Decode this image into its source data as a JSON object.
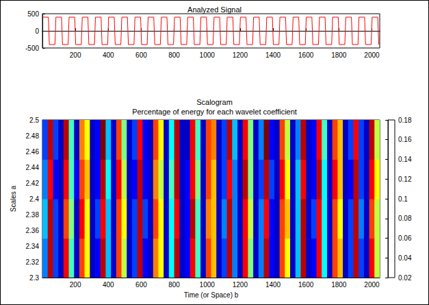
{
  "chart_data": [
    {
      "type": "line",
      "title": "Analyzed Signal",
      "color": "#ff0000",
      "grid": false,
      "xlim": [
        0,
        2048
      ],
      "xticks": [
        200,
        400,
        600,
        800,
        1000,
        1200,
        1400,
        1600,
        1800,
        2000
      ],
      "ylim": [
        -500,
        500
      ],
      "yticks": [
        -500,
        0,
        500
      ],
      "x": [
        2,
        36,
        42,
        76,
        82,
        116,
        122,
        156,
        162,
        196,
        202,
        236,
        242,
        276,
        282,
        316,
        322,
        356,
        362,
        396,
        402,
        436,
        442,
        476,
        482,
        516,
        522,
        556,
        562,
        596,
        602,
        636,
        642,
        676,
        682,
        716,
        722,
        756,
        762,
        796,
        802,
        836,
        842,
        876,
        882,
        916,
        922,
        956,
        962,
        996,
        1002,
        1036,
        1042,
        1076,
        1082,
        1116,
        1122,
        1156,
        1162,
        1196,
        1202,
        1236,
        1242,
        1276,
        1282,
        1316,
        1322,
        1356,
        1362,
        1396,
        1402,
        1436,
        1442,
        1476,
        1482,
        1516,
        1522,
        1556,
        1562,
        1596,
        1602,
        1636,
        1642,
        1676,
        1682,
        1716,
        1722,
        1756,
        1762,
        1796,
        1802,
        1836,
        1842,
        1876,
        1882,
        1916,
        1922,
        1956,
        1962,
        1996,
        2002,
        2036,
        2042
      ],
      "values": [
        400,
        400,
        -400,
        -400,
        400,
        400,
        -400,
        -400,
        400,
        400,
        -400,
        -400,
        400,
        400,
        -400,
        -400,
        400,
        400,
        -400,
        -400,
        400,
        400,
        -400,
        -400,
        400,
        400,
        -400,
        -400,
        400,
        400,
        -400,
        -400,
        400,
        400,
        -400,
        -400,
        400,
        400,
        -400,
        -400,
        400,
        400,
        -400,
        -400,
        400,
        400,
        -400,
        -400,
        400,
        400,
        -400,
        -400,
        400,
        400,
        -400,
        -400,
        400,
        400,
        -400,
        -400,
        400,
        400,
        -400,
        -400,
        400,
        400,
        -400,
        -400,
        400,
        400,
        -400,
        -400,
        400,
        400,
        -400,
        -400,
        400,
        400,
        -400,
        -400,
        400,
        400,
        -400,
        -400,
        400,
        400,
        -400,
        -400,
        400,
        400,
        -400,
        -400,
        400,
        400,
        -400,
        -400,
        400,
        400,
        -400,
        -400,
        400,
        400,
        -400
      ]
    },
    {
      "type": "heatmap",
      "title": "Scalogram",
      "subtitle": "Percentage of energy for each wavelet coefficient",
      "x_label": "Time (or Space) b",
      "y_label": "Scales a",
      "grid": false,
      "xlim": [
        0,
        2048
      ],
      "xticks": [
        200,
        400,
        600,
        800,
        1000,
        1200,
        1400,
        1600,
        1800,
        2000
      ],
      "ylim": [
        2.3,
        2.5
      ],
      "yticks": [
        2.3,
        2.32,
        2.34,
        2.36,
        2.38,
        2.4,
        2.42,
        2.44,
        2.46,
        2.48,
        2.5
      ],
      "colorbar_lim": [
        0.02,
        0.18
      ],
      "colorbar_ticks": [
        0.02,
        0.04,
        0.06,
        0.08,
        0.1,
        0.12,
        0.14,
        0.16,
        0.18
      ],
      "x_bins": [
        0,
        32,
        64,
        96,
        128,
        160,
        192,
        224,
        256,
        288,
        320,
        352,
        384,
        416,
        448,
        480,
        512,
        544,
        576,
        608,
        640,
        672,
        704,
        736,
        768,
        800,
        832,
        864,
        896,
        928,
        960,
        992,
        1024,
        1056,
        1088,
        1120,
        1152,
        1184,
        1216,
        1248,
        1280,
        1312,
        1344,
        1376,
        1408,
        1440,
        1472,
        1504,
        1536,
        1568,
        1600,
        1632,
        1664,
        1696,
        1728,
        1760,
        1792,
        1824,
        1856,
        1888,
        1920,
        1952,
        1984,
        2016,
        2048
      ],
      "y_bins": [
        2.3,
        2.35,
        2.4,
        2.45,
        2.5
      ],
      "values": [
        [
          0.06,
          0.17,
          0.05,
          0.03,
          0.16,
          0.09,
          0.03,
          0.15,
          0.12,
          0.03,
          0.04,
          0.17,
          0.07,
          0.03,
          0.15,
          0.11,
          0.03,
          0.05,
          0.17,
          0.04,
          0.03,
          0.14,
          0.12,
          0.03,
          0.08,
          0.17,
          0.03,
          0.04,
          0.16,
          0.09,
          0.03,
          0.15,
          0.13,
          0.03,
          0.05,
          0.17,
          0.06,
          0.03,
          0.16,
          0.1,
          0.03,
          0.06,
          0.17,
          0.04,
          0.03,
          0.15,
          0.12,
          0.03,
          0.07,
          0.17,
          0.03,
          0.04,
          0.16,
          0.08,
          0.03,
          0.15,
          0.13,
          0.03,
          0.05,
          0.17,
          0.05,
          0.03,
          0.16,
          0.11
        ],
        [
          0.07,
          0.17,
          0.05,
          0.03,
          0.15,
          0.1,
          0.03,
          0.16,
          0.12,
          0.03,
          0.05,
          0.16,
          0.07,
          0.03,
          0.15,
          0.12,
          0.03,
          0.05,
          0.17,
          0.05,
          0.03,
          0.15,
          0.12,
          0.03,
          0.08,
          0.16,
          0.03,
          0.04,
          0.17,
          0.09,
          0.03,
          0.14,
          0.13,
          0.03,
          0.06,
          0.17,
          0.06,
          0.03,
          0.16,
          0.11,
          0.03,
          0.06,
          0.16,
          0.04,
          0.03,
          0.15,
          0.13,
          0.03,
          0.07,
          0.17,
          0.03,
          0.05,
          0.16,
          0.08,
          0.03,
          0.15,
          0.12,
          0.03,
          0.05,
          0.17,
          0.06,
          0.03,
          0.15,
          0.11
        ],
        [
          0.06,
          0.16,
          0.04,
          0.03,
          0.16,
          0.09,
          0.04,
          0.15,
          0.13,
          0.03,
          0.04,
          0.17,
          0.08,
          0.03,
          0.16,
          0.11,
          0.03,
          0.04,
          0.17,
          0.04,
          0.03,
          0.14,
          0.11,
          0.03,
          0.09,
          0.17,
          0.03,
          0.04,
          0.16,
          0.1,
          0.03,
          0.15,
          0.13,
          0.03,
          0.05,
          0.16,
          0.06,
          0.03,
          0.17,
          0.1,
          0.03,
          0.05,
          0.17,
          0.05,
          0.03,
          0.16,
          0.12,
          0.03,
          0.07,
          0.16,
          0.03,
          0.04,
          0.17,
          0.08,
          0.03,
          0.16,
          0.13,
          0.03,
          0.04,
          0.17,
          0.05,
          0.03,
          0.16,
          0.12
        ],
        [
          0.05,
          0.17,
          0.05,
          0.03,
          0.17,
          0.09,
          0.03,
          0.14,
          0.12,
          0.03,
          0.04,
          0.18,
          0.07,
          0.03,
          0.15,
          0.1,
          0.03,
          0.05,
          0.16,
          0.04,
          0.03,
          0.15,
          0.12,
          0.03,
          0.08,
          0.17,
          0.03,
          0.03,
          0.16,
          0.09,
          0.03,
          0.15,
          0.14,
          0.03,
          0.05,
          0.17,
          0.07,
          0.03,
          0.16,
          0.1,
          0.03,
          0.06,
          0.18,
          0.04,
          0.03,
          0.15,
          0.11,
          0.03,
          0.06,
          0.17,
          0.03,
          0.04,
          0.16,
          0.09,
          0.03,
          0.15,
          0.13,
          0.03,
          0.05,
          0.16,
          0.05,
          0.03,
          0.17,
          0.11
        ]
      ]
    }
  ]
}
